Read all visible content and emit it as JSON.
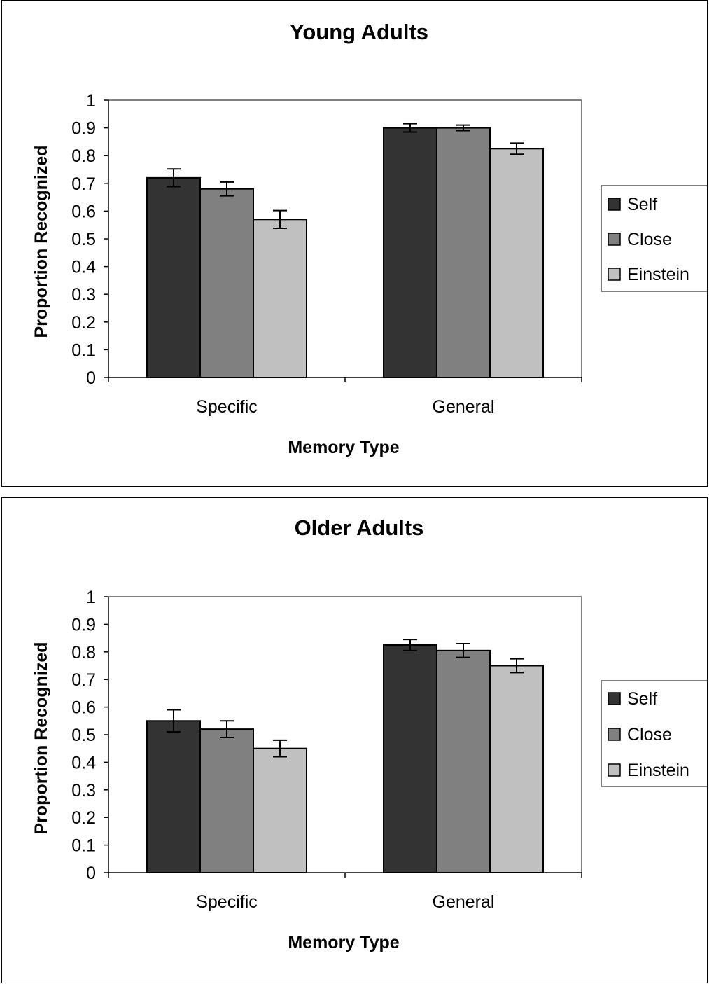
{
  "chart_data": [
    {
      "type": "bar",
      "title": "Young Adults",
      "xlabel": "Memory Type",
      "ylabel": "Proportion Recognized",
      "ylim": [
        0,
        1
      ],
      "yticks": [
        "0",
        "0.1",
        "0.2",
        "0.3",
        "0.4",
        "0.5",
        "0.6",
        "0.7",
        "0.8",
        "0.9",
        "1"
      ],
      "categories": [
        "Specific",
        "General"
      ],
      "series": [
        {
          "name": "Self",
          "color": "#333333",
          "values": [
            0.72,
            0.9
          ],
          "errors": [
            0.032,
            0.015
          ]
        },
        {
          "name": "Close",
          "color": "#808080",
          "values": [
            0.68,
            0.9
          ],
          "errors": [
            0.025,
            0.01
          ]
        },
        {
          "name": "Einstein",
          "color": "#c0c0c0",
          "values": [
            0.57,
            0.825
          ],
          "errors": [
            0.032,
            0.02
          ]
        }
      ],
      "legend": "right",
      "grid": false
    },
    {
      "type": "bar",
      "title": "Older Adults",
      "xlabel": "Memory Type",
      "ylabel": "Proportion Recognized",
      "ylim": [
        0,
        1
      ],
      "yticks": [
        "0",
        "0.1",
        "0.2",
        "0.3",
        "0.4",
        "0.5",
        "0.6",
        "0.7",
        "0.8",
        "0.9",
        "1"
      ],
      "categories": [
        "Specific",
        "General"
      ],
      "series": [
        {
          "name": "Self",
          "color": "#333333",
          "values": [
            0.55,
            0.825
          ],
          "errors": [
            0.04,
            0.02
          ]
        },
        {
          "name": "Close",
          "color": "#808080",
          "values": [
            0.52,
            0.805
          ],
          "errors": [
            0.03,
            0.025
          ]
        },
        {
          "name": "Einstein",
          "color": "#c0c0c0",
          "values": [
            0.45,
            0.75
          ],
          "errors": [
            0.03,
            0.025
          ]
        }
      ],
      "legend": "right",
      "grid": false
    }
  ]
}
